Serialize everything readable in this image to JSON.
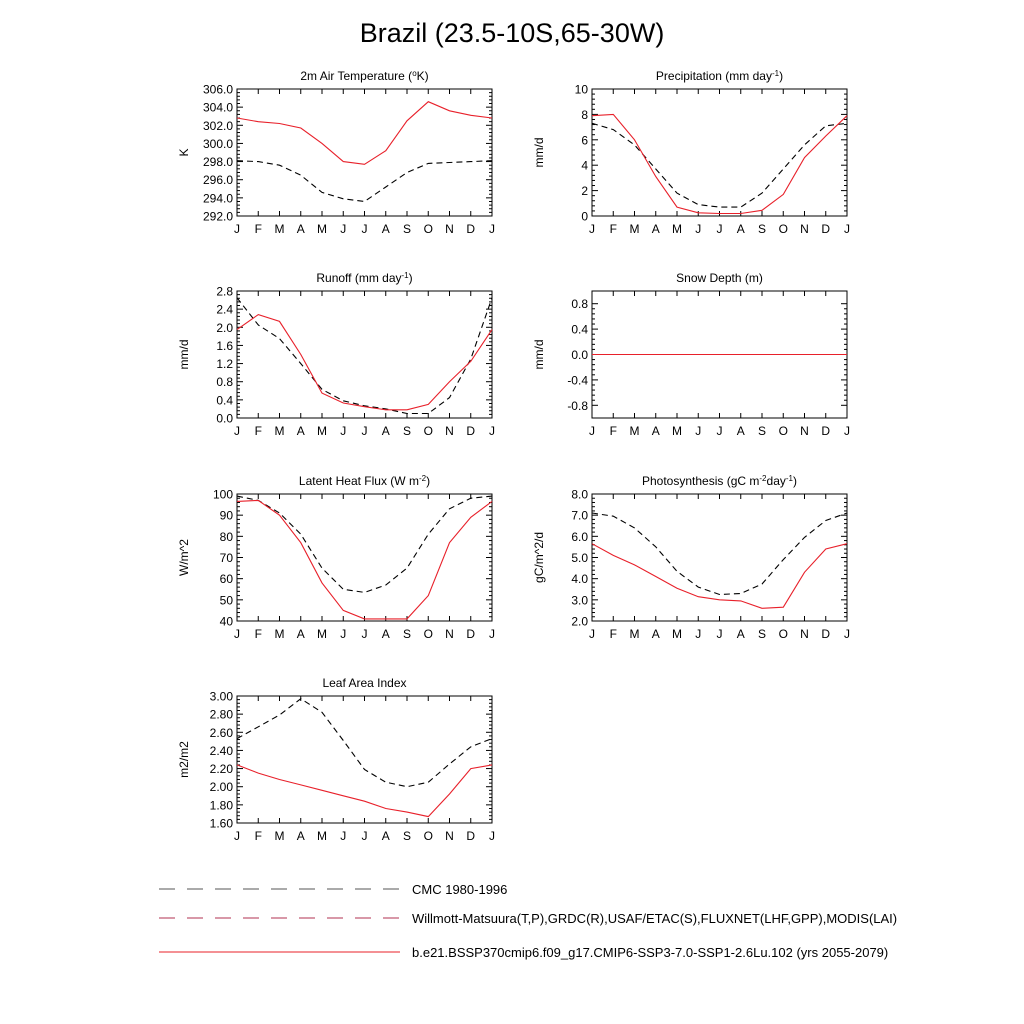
{
  "title": "Brazil (23.5-10S,65-30W)",
  "months": [
    "J",
    "F",
    "M",
    "A",
    "M",
    "J",
    "J",
    "A",
    "S",
    "O",
    "N",
    "D",
    "J"
  ],
  "colors": {
    "model": "#e8202a",
    "obs": "#000000",
    "obs_alt": "#1a1aff"
  },
  "legend": {
    "entries": [
      {
        "label": "CMC 1980-1996",
        "style": "dashed",
        "color": "#555555"
      },
      {
        "label": "Willmott-Matsuura(T,P),GRDC(R),USAF/ETAC(S),FLUXNET(LHF,GPP),MODIS(LAI)",
        "style": "dashed",
        "color": "#b03050"
      },
      {
        "label": "b.e21.BSSP370cmip6.f09_g17.CMIP6-SSP3-7.0-SSP1-2.6Lu.102 (yrs 2055-2079)",
        "style": "solid",
        "color": "#e8202a"
      }
    ]
  },
  "chart_data": [
    {
      "type": "line",
      "title": "2m Air Temperature (°K)",
      "title_pre": "2m Air Temperature (",
      "title_sup": "o",
      "title_post": "K)",
      "ylabel": "K",
      "ylim": [
        292,
        306
      ],
      "yticks": [
        "292.0",
        "294.0",
        "296.0",
        "298.0",
        "300.0",
        "302.0",
        "304.0",
        "306.0"
      ],
      "ytick_values": [
        292,
        294,
        296,
        298,
        300,
        302,
        304,
        306
      ],
      "series": [
        {
          "values": [
            298.1,
            298.0,
            297.6,
            296.5,
            294.6,
            293.9,
            293.6,
            295.2,
            296.8,
            297.8,
            297.9,
            298.0,
            298.1
          ],
          "style": "dashed"
        },
        {
          "values": [
            302.8,
            302.4,
            302.2,
            301.7,
            300.0,
            298.0,
            297.7,
            299.2,
            302.5,
            304.6,
            303.6,
            303.1,
            302.8
          ],
          "style": "solid"
        }
      ]
    },
    {
      "type": "line",
      "title": "Precipitation (mm day-1)",
      "title_pre": "Precipitation (mm day",
      "title_sup": "-1",
      "title_post": ")",
      "ylabel": "mm/d",
      "ylim": [
        0,
        10
      ],
      "yticks": [
        "0",
        "2",
        "4",
        "6",
        "8",
        "10"
      ],
      "ytick_values": [
        0,
        2,
        4,
        6,
        8,
        10
      ],
      "series": [
        {
          "values": [
            7.3,
            6.8,
            5.6,
            3.7,
            1.8,
            0.9,
            0.7,
            0.7,
            1.8,
            3.7,
            5.6,
            7.1,
            7.3
          ],
          "style": "dashed"
        },
        {
          "values": [
            7.9,
            8.0,
            6.0,
            3.1,
            0.7,
            0.25,
            0.2,
            0.2,
            0.45,
            1.7,
            4.6,
            6.3,
            7.9
          ],
          "style": "solid"
        }
      ]
    },
    {
      "type": "line",
      "title": "Runoff (mm day-1)",
      "title_pre": "Runoff (mm day",
      "title_sup": "-1",
      "title_post": ")",
      "ylabel": "mm/d",
      "ylim": [
        0,
        2.8
      ],
      "yticks": [
        "0.0",
        "0.4",
        "0.8",
        "1.2",
        "1.6",
        "2.0",
        "2.4",
        "2.8"
      ],
      "ytick_values": [
        0,
        0.4,
        0.8,
        1.2,
        1.6,
        2.0,
        2.4,
        2.8
      ],
      "series": [
        {
          "values": [
            2.65,
            2.05,
            1.75,
            1.2,
            0.63,
            0.38,
            0.27,
            0.2,
            0.1,
            0.1,
            0.45,
            1.3,
            2.65
          ],
          "style": "dashed"
        },
        {
          "values": [
            1.95,
            2.28,
            2.13,
            1.4,
            0.55,
            0.33,
            0.25,
            0.18,
            0.18,
            0.3,
            0.8,
            1.25,
            1.95
          ],
          "style": "solid"
        }
      ]
    },
    {
      "type": "line",
      "title": "Snow Depth (m)",
      "title_pre": "Snow Depth (m)",
      "title_sup": "",
      "title_post": "",
      "ylabel": "mm/d",
      "ylim": [
        -1,
        1
      ],
      "yticks": [
        "-0.8",
        "-0.4",
        "0.0",
        "0.4",
        "0.8"
      ],
      "ytick_values": [
        -0.8,
        -0.4,
        0,
        0.4,
        0.8
      ],
      "series": [
        {
          "values": [
            0,
            0,
            0,
            0,
            0,
            0,
            0,
            0,
            0,
            0,
            0,
            0,
            0
          ],
          "style": "dashed"
        },
        {
          "values": [
            0,
            0,
            0,
            0,
            0,
            0,
            0,
            0,
            0,
            0,
            0,
            0,
            0
          ],
          "style": "solid"
        }
      ]
    },
    {
      "type": "line",
      "title": "Latent Heat Flux (W m-2)",
      "title_pre": "Latent Heat Flux (W m",
      "title_sup": "-2",
      "title_post": ")",
      "ylabel": "W/m^2",
      "ylim": [
        40,
        100
      ],
      "yticks": [
        "40",
        "50",
        "60",
        "70",
        "80",
        "90",
        "100"
      ],
      "ytick_values": [
        40,
        50,
        60,
        70,
        80,
        90,
        100
      ],
      "series": [
        {
          "values": [
            99,
            97,
            91,
            81,
            65,
            55,
            53.5,
            57,
            65,
            81,
            93,
            98,
            99
          ],
          "style": "dashed"
        },
        {
          "values": [
            96.5,
            97,
            90,
            77,
            58,
            45,
            41,
            41,
            41,
            52,
            77,
            89,
            96.5
          ],
          "style": "solid"
        }
      ]
    },
    {
      "type": "line",
      "title": "Photosynthesis (gC m-2day-1)",
      "title_pre": "Photosynthesis (gC m",
      "title_sup": "-2",
      "title_post": "day",
      "title_sup2": "-1",
      "title_post2": ")",
      "ylabel": "gC/m^2/d",
      "ylim": [
        2,
        8
      ],
      "yticks": [
        "2.0",
        "3.0",
        "4.0",
        "5.0",
        "6.0",
        "7.0",
        "8.0"
      ],
      "ytick_values": [
        2,
        3,
        4,
        5,
        6,
        7,
        8
      ],
      "series": [
        {
          "values": [
            7.1,
            6.95,
            6.4,
            5.5,
            4.35,
            3.6,
            3.25,
            3.3,
            3.75,
            4.9,
            5.95,
            6.75,
            7.1
          ],
          "style": "dashed"
        },
        {
          "values": [
            5.65,
            5.1,
            4.65,
            4.1,
            3.55,
            3.15,
            3.0,
            2.95,
            2.6,
            2.65,
            4.3,
            5.4,
            5.65
          ],
          "style": "solid"
        }
      ]
    },
    {
      "type": "line",
      "title": "Leaf Area Index",
      "title_pre": "Leaf Area Index",
      "title_sup": "",
      "title_post": "",
      "ylabel": "m2/m2",
      "ylim": [
        1.6,
        3.0
      ],
      "yticks": [
        "1.60",
        "1.80",
        "2.00",
        "2.20",
        "2.40",
        "2.60",
        "2.80",
        "3.00"
      ],
      "ytick_values": [
        1.6,
        1.8,
        2.0,
        2.2,
        2.4,
        2.6,
        2.8,
        3.0
      ],
      "series": [
        {
          "values": [
            2.53,
            2.66,
            2.79,
            2.97,
            2.82,
            2.51,
            2.19,
            2.05,
            2.0,
            2.05,
            2.25,
            2.44,
            2.53
          ],
          "style": "dashed"
        },
        {
          "values": [
            2.24,
            2.15,
            2.08,
            2.02,
            1.96,
            1.9,
            1.84,
            1.76,
            1.72,
            1.67,
            1.92,
            2.2,
            2.24
          ],
          "style": "solid"
        }
      ]
    }
  ]
}
